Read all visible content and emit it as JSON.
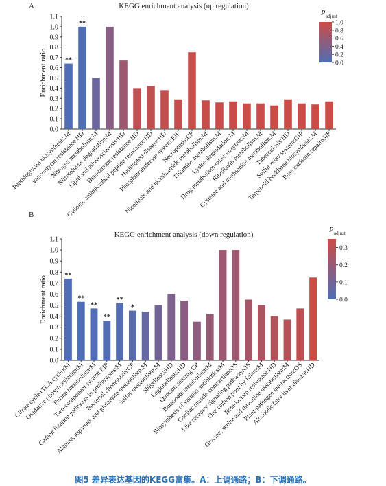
{
  "caption": "图5  差异表达基因的KEGG富集。A：上调通路；B：下调通路。",
  "chart_data": [
    {
      "panel": "A",
      "type": "bar",
      "title": "KEGG enrichment analysis (up regulation)",
      "ylabel": "Enrichment ratio",
      "ylim": [
        0,
        1.1
      ],
      "yticks": [
        "0.0",
        "0.1",
        "0.2",
        "0.3",
        "0.4",
        "0.5",
        "0.6",
        "0.7",
        "0.8",
        "0.9",
        "1.0",
        "1.1"
      ],
      "colorbar": {
        "title": "P",
        "subscript": "adjust",
        "ticks": [
          "0.0",
          "0.2",
          "0.4",
          "0.6",
          "0.8",
          "1.0"
        ],
        "range": [
          0,
          1.0
        ]
      },
      "colors": {
        "low": "#4f6eb6",
        "high": "#cd4b45"
      },
      "categories": [
        "Peptidoglycan biosynthesis:M",
        "Vancomycin resistance:HD",
        "Nitrogen metabolism:M",
        "Nitrotoluene degradation:M",
        "Lipid and atherosclerosis:HD",
        "Beta-lactam resistance:HD",
        "Cationic antimicrobial peptide resistance:HD",
        "Huntington disease:HD",
        "Phosphotransferase system:EIP",
        "Necroptosis:CP",
        "Nicotinate and nicotinamide metabolism:M",
        "Thiamine metabolism:M",
        "Lysine degradation:M",
        "Drug metabolism-other enzymes:M",
        "Riboflavin metabolism:M",
        "Cysteine and methionine metabolism:M",
        "Tuberculosis:HD",
        "Sulfur relay system:GIP",
        "Terpenoid backbone biosynthesis:M",
        "Base excision repair:GIP"
      ],
      "values": [
        0.64,
        1.0,
        0.5,
        1.0,
        0.67,
        0.4,
        0.42,
        0.38,
        0.29,
        0.75,
        0.28,
        0.26,
        0.27,
        0.25,
        0.25,
        0.23,
        0.29,
        0.25,
        0.24,
        0.27
      ],
      "padj": [
        0.0,
        0.01,
        0.22,
        0.45,
        0.62,
        0.88,
        0.9,
        0.92,
        0.93,
        0.95,
        0.96,
        0.96,
        0.97,
        0.97,
        0.97,
        0.98,
        0.98,
        0.98,
        0.99,
        0.99
      ],
      "stars": [
        "**",
        "**",
        "",
        "",
        "",
        "",
        "",
        "",
        "",
        "",
        "",
        "",
        "",
        "",
        "",
        "",
        "",
        "",
        "",
        ""
      ]
    },
    {
      "panel": "B",
      "type": "bar",
      "title": "KEGG enrichment analysis (down regulation)",
      "ylabel": "Enrichment ratio",
      "ylim": [
        0,
        1.1
      ],
      "yticks": [
        "0.0",
        "0.1",
        "0.2",
        "0.3",
        "0.4",
        "0.5",
        "0.6",
        "0.7",
        "0.8",
        "0.9",
        "1.0",
        "1.1"
      ],
      "colorbar": {
        "title": "P",
        "subscript": "adjust",
        "ticks": [
          "0.0",
          "0.1",
          "0.2",
          "0.3"
        ],
        "range": [
          0,
          0.35
        ]
      },
      "colors": {
        "low": "#4f6eb6",
        "high": "#cd4b45"
      },
      "categories": [
        "Citrate cycle (TCA cycle):M",
        "Oxidative phosphorylation:M",
        "Purine metabolism:M",
        "Two-component system:EIP",
        "Carbon fixation pathways in prokaryotes:M",
        "Bacterial chemotaxis:CP",
        "Alanine, aspartate and glutamate metabolism:M",
        "Sulfur metabolism:M",
        "Shigellosis:HD",
        "Legionellosis:HD",
        "Quorum sensing:CP",
        "Butanoate metabolism:M",
        "Biosynthesis of various antibiotics:M",
        "Cardiac muscle contraction:OS",
        "Like receptor signaling pathway:OS",
        "One carbon pool by folate:M",
        "Beta-lactam resistance:HD",
        "Glycine, serine and threonine metabolism:M",
        "Plant-pathogen interaction:OS",
        "Alcoholic fatty liver disease:HD"
      ],
      "values": [
        0.74,
        0.53,
        0.47,
        0.36,
        0.52,
        0.45,
        0.44,
        0.5,
        0.6,
        0.54,
        0.35,
        0.42,
        1.0,
        1.0,
        0.55,
        0.5,
        0.4,
        0.37,
        0.47,
        0.75
      ],
      "padj": [
        0.0,
        0.003,
        0.008,
        0.01,
        0.015,
        0.03,
        0.06,
        0.1,
        0.13,
        0.16,
        0.18,
        0.2,
        0.21,
        0.22,
        0.24,
        0.26,
        0.28,
        0.29,
        0.31,
        0.35
      ],
      "stars": [
        "**",
        "**",
        "**",
        "**",
        "**",
        "*",
        "",
        "",
        "",
        "",
        "",
        "",
        "",
        "",
        "",
        "",
        "",
        "",
        "",
        ""
      ]
    }
  ]
}
